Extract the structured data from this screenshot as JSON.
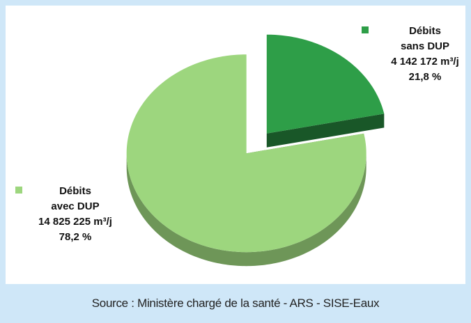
{
  "chart_data": {
    "type": "pie",
    "categories": [
      "Débits sans DUP",
      "Débits avec DUP"
    ],
    "values": [
      21.8,
      78.2
    ],
    "value_labels": [
      "21,8 %",
      "78,2 %"
    ],
    "volume_labels": [
      "4 142 172 m³/j",
      "14 825 225 m³/j"
    ],
    "colors": [
      "#2e9e48",
      "#9dd67e"
    ],
    "source": "Source : Ministère chargé de la santé - ARS - SISE-Eaux"
  }
}
